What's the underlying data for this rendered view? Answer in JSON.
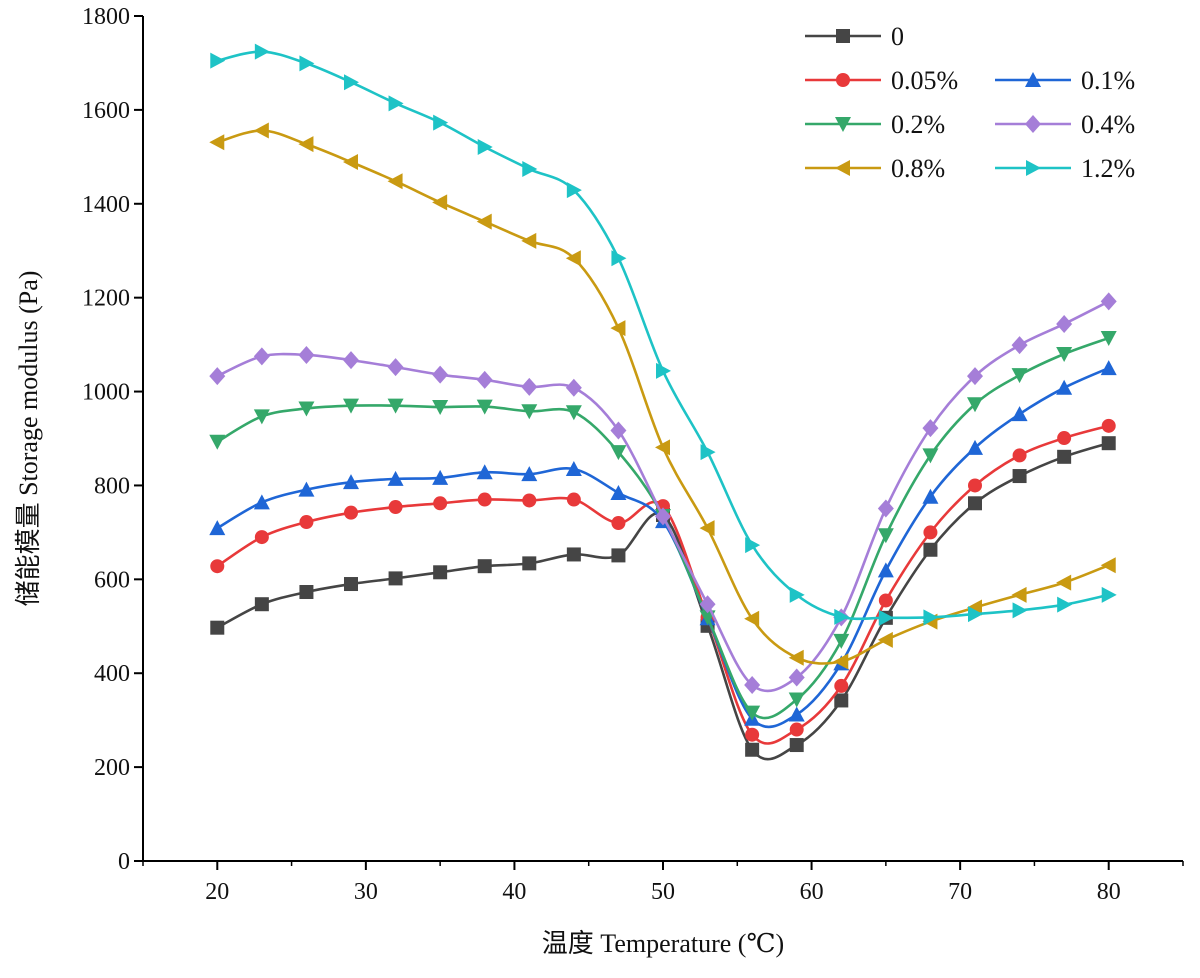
{
  "chart_data": {
    "type": "line",
    "xlabel": "温度 Temperature (℃)",
    "ylabel": "储能模量 Storage modulus (Pa)",
    "xlim": [
      15,
      85
    ],
    "ylim": [
      0,
      1800
    ],
    "xticks": [
      20,
      30,
      40,
      50,
      60,
      70,
      80
    ],
    "yticks": [
      0,
      200,
      400,
      600,
      800,
      1000,
      1200,
      1400,
      1600,
      1800
    ],
    "grid": false,
    "legend_position": "top-right",
    "x": [
      20,
      23,
      26,
      29,
      32,
      35,
      38,
      41,
      44,
      47,
      50,
      53,
      56,
      59,
      62,
      65,
      68,
      71,
      74,
      77,
      80
    ],
    "series": [
      {
        "name": "0",
        "color": "#454545",
        "marker": "square",
        "values": [
          497,
          547,
          573,
          590,
          602,
          615,
          628,
          634,
          653,
          651,
          737,
          501,
          237,
          247,
          342,
          518,
          663,
          762,
          820,
          861,
          890
        ]
      },
      {
        "name": "0.05%",
        "color": "#e8393a",
        "marker": "circle",
        "values": [
          628,
          690,
          722,
          742,
          754,
          762,
          770,
          768,
          770,
          720,
          756,
          519,
          269,
          280,
          373,
          555,
          700,
          800,
          864,
          901,
          927
        ]
      },
      {
        "name": "0.1%",
        "color": "#1f66d6",
        "marker": "triangle-up",
        "values": [
          709,
          764,
          791,
          807,
          814,
          816,
          828,
          824,
          835,
          784,
          724,
          517,
          303,
          312,
          421,
          619,
          776,
          880,
          952,
          1008,
          1050
        ]
      },
      {
        "name": "0.2%",
        "color": "#35a86a",
        "marker": "triangle-down",
        "values": [
          893,
          947,
          964,
          970,
          970,
          967,
          968,
          958,
          956,
          871,
          735,
          519,
          316,
          344,
          469,
          694,
          864,
          973,
          1035,
          1080,
          1114
        ]
      },
      {
        "name": "0.4%",
        "color": "#a57ed8",
        "marker": "diamond",
        "values": [
          1033,
          1075,
          1078,
          1067,
          1052,
          1036,
          1025,
          1010,
          1008,
          917,
          734,
          547,
          375,
          391,
          519,
          751,
          922,
          1033,
          1099,
          1144,
          1192
        ]
      },
      {
        "name": "0.8%",
        "color": "#c99a12",
        "marker": "triangle-left",
        "values": [
          1531,
          1556,
          1527,
          1489,
          1448,
          1403,
          1362,
          1321,
          1284,
          1135,
          881,
          709,
          516,
          433,
          425,
          471,
          510,
          540,
          567,
          593,
          630
        ]
      },
      {
        "name": "1.2%",
        "color": "#1ec3c6",
        "marker": "triangle-right",
        "values": [
          1705,
          1724,
          1699,
          1659,
          1614,
          1573,
          1521,
          1474,
          1429,
          1284,
          1044,
          871,
          673,
          567,
          520,
          518,
          519,
          526,
          534,
          546,
          567
        ]
      }
    ]
  }
}
